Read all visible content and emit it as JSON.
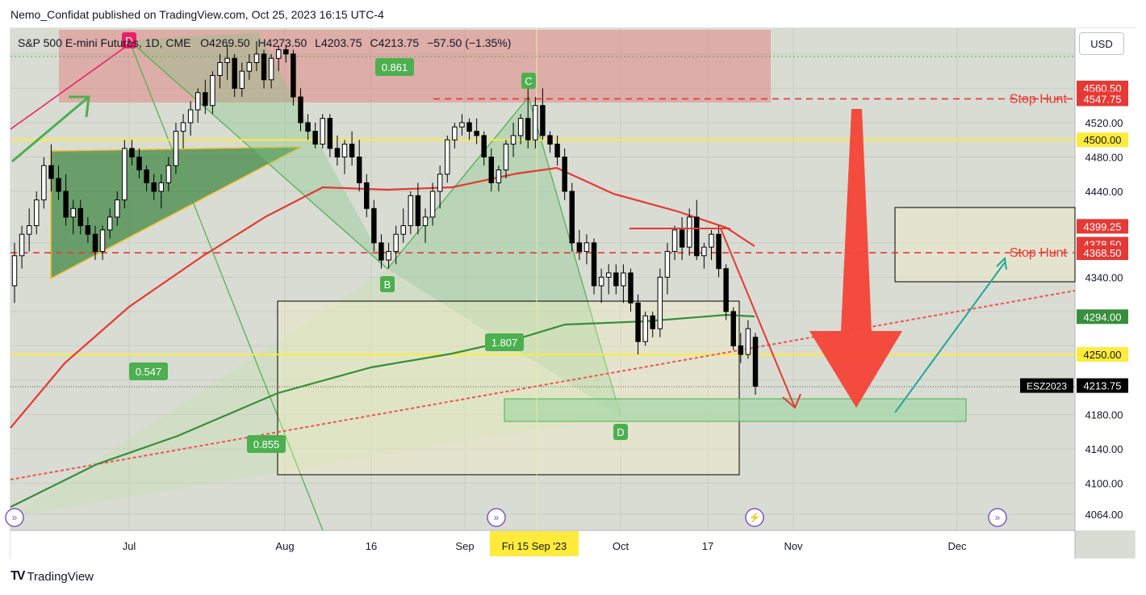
{
  "publisher": "Nemo_Confidat published on TradingView.com, Oct 25, 2023 16:15 UTC-4",
  "header": {
    "symbol": "S&P 500 E-mini Futures, 1D, CME",
    "o_label": "O",
    "o": "4269.50",
    "h_label": "H",
    "h": "4273.50",
    "l_label": "L",
    "l": "4203.75",
    "c_label": "C",
    "c": "4213.75",
    "change": "−57.50 (−1.35%)"
  },
  "currency": "USD",
  "brand": "TradingView",
  "colors": {
    "background": "#d8dcd3",
    "up": "#ffffff",
    "down": "#000000",
    "ema_red": "#e53935",
    "sma_green": "#388e3c",
    "yellow_line": "#ffeb3b",
    "stop_hunt": "#e53935",
    "label_green": "#4caf50",
    "pattern_red": "#e91e63"
  },
  "chart_data": {
    "type": "candlestick",
    "symbol": "ESZ2023",
    "timeframe": "1D",
    "y_axis": {
      "ticks": [
        4064,
        4100,
        4140,
        4180,
        4220,
        4260,
        4300,
        4340,
        4380,
        4440,
        4480,
        4520,
        4560,
        4600
      ],
      "tick_labels": [
        "4064.00",
        "4100.00",
        "4140.00",
        "4180.00",
        "",
        "",
        "",
        "4340.00",
        "",
        "4440.00",
        "4480.00",
        "4520.00",
        "",
        ""
      ],
      "ylim": [
        4045,
        4630
      ]
    },
    "x_axis": {
      "labels": [
        "Jul",
        "Aug",
        "16",
        "Sep",
        "Oct",
        "17",
        "Nov",
        "Dec"
      ],
      "crosshair_label": "Fri 15 Sep '23"
    },
    "price_labels": [
      {
        "text": "4560.50",
        "value": 4560.5,
        "color": "#e53935"
      },
      {
        "text": "4547.75",
        "value": 4547.75,
        "color": "#e53935"
      },
      {
        "text": "4500.00",
        "value": 4500.0,
        "color": "#ffeb3b"
      },
      {
        "text": "4399.25",
        "value": 4399.25,
        "color": "#e53935"
      },
      {
        "text": "4378.50",
        "value": 4378.5,
        "color": "#e53935"
      },
      {
        "text": "4368.50",
        "value": 4368.5,
        "color": "#e53935"
      },
      {
        "text": "4294.00",
        "value": 4294.0,
        "color": "#388e3c"
      },
      {
        "text": "4250.00",
        "value": 4250.0,
        "color": "#ffeb3b"
      },
      {
        "text": "4213.75",
        "value": 4213.75,
        "color": "#000000"
      }
    ],
    "symbol_label": "ESZ2023",
    "horizontal_levels": [
      {
        "name": "Stop Hunt",
        "value": 4547.75,
        "style": "dashed",
        "color": "#e53935"
      },
      {
        "name": "Stop Hunt",
        "value": 4368.5,
        "style": "dashed",
        "color": "#e53935"
      },
      {
        "name": "",
        "value": 4500,
        "style": "solid",
        "color": "#ffeb3b"
      },
      {
        "name": "",
        "value": 4250,
        "style": "solid",
        "color": "#ffeb3b"
      }
    ],
    "pattern_points": [
      "D",
      "C",
      "B",
      "D"
    ],
    "ratios": [
      "0.861",
      "0.547",
      "1.807",
      "0.855"
    ],
    "candles": [
      [
        4330,
        4380,
        4310,
        4365
      ],
      [
        4365,
        4400,
        4350,
        4390
      ],
      [
        4390,
        4420,
        4370,
        4400
      ],
      [
        4400,
        4440,
        4390,
        4430
      ],
      [
        4430,
        4480,
        4420,
        4470
      ],
      [
        4470,
        4495,
        4440,
        4455
      ],
      [
        4455,
        4470,
        4430,
        4440
      ],
      [
        4440,
        4460,
        4400,
        4410
      ],
      [
        4410,
        4430,
        4390,
        4420
      ],
      [
        4420,
        4430,
        4390,
        4400
      ],
      [
        4400,
        4410,
        4380,
        4390
      ],
      [
        4390,
        4400,
        4360,
        4370
      ],
      [
        4370,
        4400,
        4360,
        4395
      ],
      [
        4395,
        4420,
        4385,
        4410
      ],
      [
        4410,
        4440,
        4400,
        4430
      ],
      [
        4430,
        4500,
        4420,
        4490
      ],
      [
        4490,
        4500,
        4470,
        4480
      ],
      [
        4480,
        4490,
        4455,
        4465
      ],
      [
        4465,
        4470,
        4440,
        4450
      ],
      [
        4450,
        4460,
        4430,
        4440
      ],
      [
        4440,
        4460,
        4420,
        4450
      ],
      [
        4450,
        4480,
        4440,
        4470
      ],
      [
        4470,
        4520,
        4460,
        4510
      ],
      [
        4510,
        4530,
        4490,
        4520
      ],
      [
        4520,
        4545,
        4505,
        4535
      ],
      [
        4535,
        4560,
        4520,
        4555
      ],
      [
        4555,
        4570,
        4530,
        4540
      ],
      [
        4540,
        4580,
        4530,
        4575
      ],
      [
        4575,
        4600,
        4560,
        4590
      ],
      [
        4590,
        4610,
        4570,
        4595
      ],
      [
        4595,
        4600,
        4550,
        4560
      ],
      [
        4560,
        4590,
        4550,
        4580
      ],
      [
        4580,
        4600,
        4570,
        4590
      ],
      [
        4590,
        4615,
        4580,
        4600
      ],
      [
        4600,
        4605,
        4560,
        4570
      ],
      [
        4570,
        4600,
        4560,
        4595
      ],
      [
        4595,
        4610,
        4580,
        4605
      ],
      [
        4605,
        4610,
        4590,
        4600
      ],
      [
        4600,
        4605,
        4540,
        4550
      ],
      [
        4550,
        4560,
        4510,
        4520
      ],
      [
        4520,
        4530,
        4500,
        4510
      ],
      [
        4510,
        4520,
        4490,
        4495
      ],
      [
        4495,
        4530,
        4490,
        4525
      ],
      [
        4525,
        4530,
        4480,
        4490
      ],
      [
        4490,
        4505,
        4470,
        4480
      ],
      [
        4480,
        4500,
        4460,
        4495
      ],
      [
        4495,
        4510,
        4470,
        4480
      ],
      [
        4480,
        4500,
        4440,
        4450
      ],
      [
        4450,
        4460,
        4410,
        4420
      ],
      [
        4420,
        4430,
        4370,
        4380
      ],
      [
        4380,
        4390,
        4350,
        4360
      ],
      [
        4360,
        4380,
        4350,
        4370
      ],
      [
        4370,
        4400,
        4355,
        4390
      ],
      [
        4390,
        4420,
        4380,
        4400
      ],
      [
        4400,
        4440,
        4390,
        4435
      ],
      [
        4435,
        4450,
        4390,
        4400
      ],
      [
        4400,
        4420,
        4380,
        4410
      ],
      [
        4410,
        4450,
        4400,
        4440
      ],
      [
        4440,
        4470,
        4420,
        4460
      ],
      [
        4460,
        4505,
        4450,
        4500
      ],
      [
        4500,
        4520,
        4490,
        4515
      ],
      [
        4515,
        4530,
        4505,
        4520
      ],
      [
        4520,
        4525,
        4500,
        4510
      ],
      [
        4510,
        4525,
        4495,
        4505
      ],
      [
        4505,
        4510,
        4470,
        4480
      ],
      [
        4480,
        4490,
        4440,
        4450
      ],
      [
        4450,
        4470,
        4440,
        4465
      ],
      [
        4465,
        4500,
        4455,
        4495
      ],
      [
        4495,
        4520,
        4480,
        4505
      ],
      [
        4505,
        4530,
        4495,
        4525
      ],
      [
        4525,
        4560,
        4490,
        4500
      ],
      [
        4500,
        4550,
        4490,
        4540
      ],
      [
        4540,
        4560,
        4500,
        4505
      ],
      [
        4505,
        4510,
        4485,
        4495
      ],
      [
        4495,
        4505,
        4470,
        4480
      ],
      [
        4480,
        4490,
        4430,
        4440
      ],
      [
        4440,
        4450,
        4370,
        4380
      ],
      [
        4380,
        4395,
        4360,
        4370
      ],
      [
        4370,
        4390,
        4355,
        4380
      ],
      [
        4380,
        4385,
        4320,
        4330
      ],
      [
        4330,
        4350,
        4310,
        4340
      ],
      [
        4340,
        4355,
        4320,
        4345
      ],
      [
        4345,
        4355,
        4320,
        4330
      ],
      [
        4330,
        4355,
        4310,
        4345
      ],
      [
        4345,
        4350,
        4300,
        4310
      ],
      [
        4310,
        4320,
        4250,
        4265
      ],
      [
        4265,
        4300,
        4260,
        4295
      ],
      [
        4295,
        4300,
        4270,
        4280
      ],
      [
        4280,
        4350,
        4270,
        4340
      ],
      [
        4340,
        4380,
        4320,
        4370
      ],
      [
        4370,
        4400,
        4360,
        4395
      ],
      [
        4395,
        4410,
        4360,
        4375
      ],
      [
        4375,
        4420,
        4365,
        4410
      ],
      [
        4410,
        4430,
        4360,
        4365
      ],
      [
        4365,
        4380,
        4350,
        4375
      ],
      [
        4375,
        4395,
        4360,
        4390
      ],
      [
        4390,
        4400,
        4340,
        4350
      ],
      [
        4350,
        4355,
        4290,
        4300
      ],
      [
        4300,
        4305,
        4255,
        4260
      ],
      [
        4260,
        4275,
        4240,
        4250
      ],
      [
        4250,
        4290,
        4245,
        4280
      ],
      [
        4270,
        4275,
        4203,
        4213
      ]
    ]
  }
}
